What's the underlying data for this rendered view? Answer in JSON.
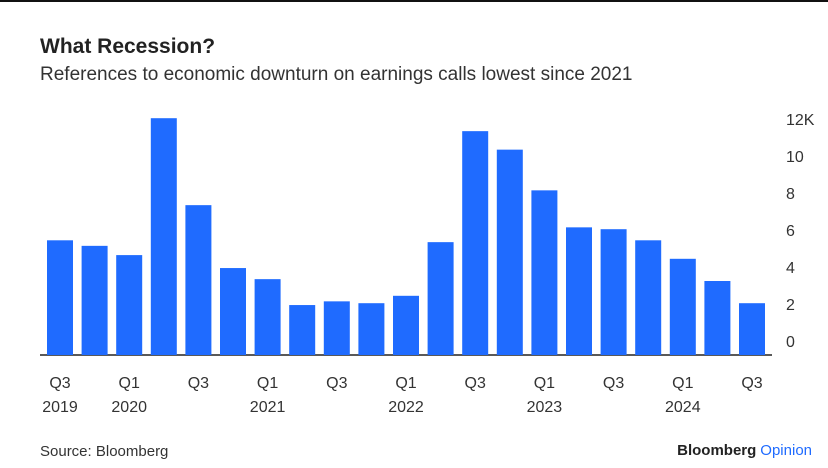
{
  "chart_data": {
    "type": "bar",
    "title": "What Recession?",
    "subtitle": "References to economic downturn on earnings calls lowest since 2021",
    "categories": [
      "Q3 2019",
      null,
      "Q1 2020",
      null,
      "Q3",
      null,
      "Q1 2021",
      null,
      "Q3",
      null,
      "Q1 2022",
      null,
      "Q3",
      null,
      "Q1 2023",
      null,
      "Q3",
      null,
      "Q1 2024",
      null,
      "Q3"
    ],
    "values": [
      6.2,
      5.9,
      5.4,
      12.8,
      8.1,
      4.7,
      4.1,
      2.7,
      2.9,
      2.8,
      3.2,
      6.1,
      12.1,
      11.1,
      8.9,
      6.9,
      6.8,
      6.2,
      5.2,
      4.0,
      2.8
    ],
    "color": "#1f6bff",
    "ylim": [
      0,
      13
    ],
    "yticks": [
      0,
      2,
      4,
      6,
      8,
      10,
      {
        "value": 12,
        "label": "12K"
      }
    ],
    "grid": false,
    "source": "Source: Bloomberg",
    "brand": [
      "Bloomberg",
      "Opinion"
    ]
  }
}
